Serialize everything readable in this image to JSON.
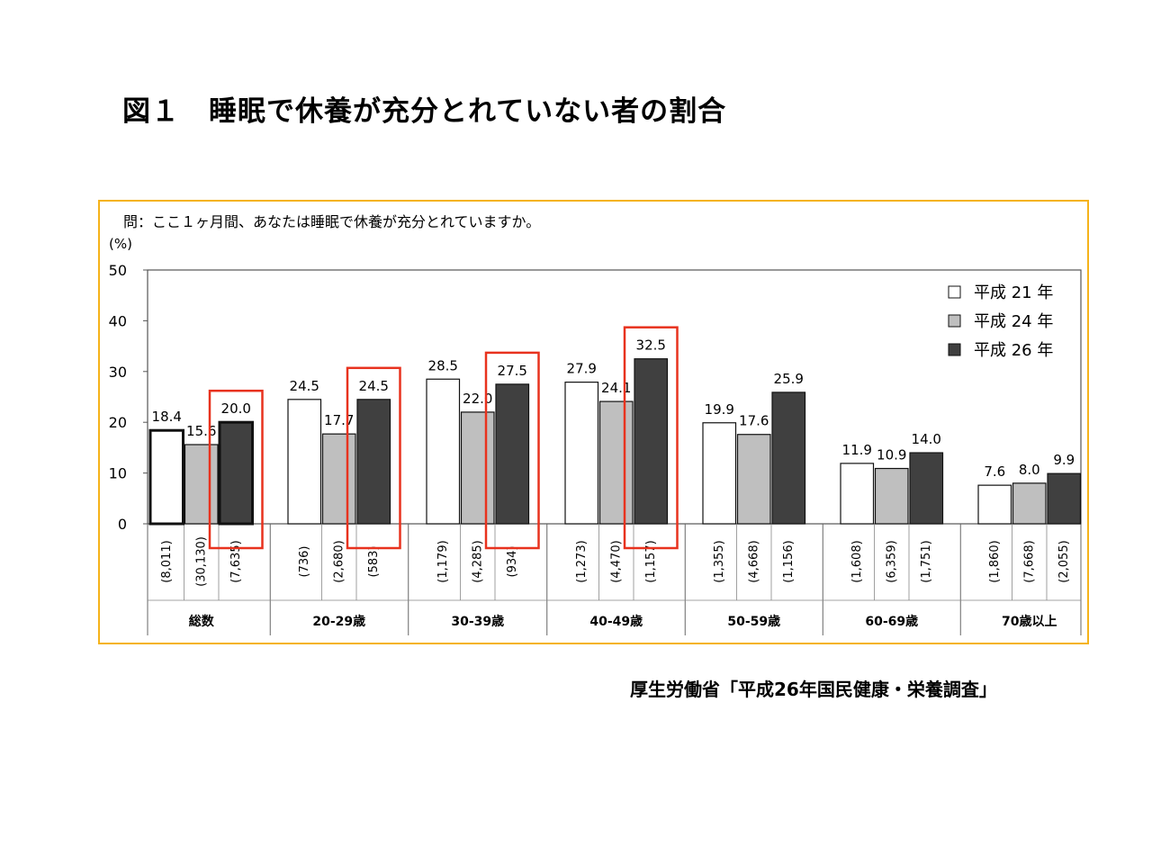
{
  "slide": {
    "title": "図１　睡眠で休養が充分とれていない者の割合",
    "source": "厚生労働省「平成26年国民健康・栄養調査」"
  },
  "colors": {
    "frame": "#f5b31a",
    "highlight": "#e8321e",
    "series": [
      "#ffffff",
      "#bfbfbf",
      "#404040"
    ]
  },
  "chart_data": {
    "type": "bar",
    "question": "問：ここ１ヶ月間、あなたは睡眠で休養が充分とれていますか。",
    "ylabel": "(%)",
    "ylim": [
      0,
      50
    ],
    "yticks": [
      0,
      10,
      20,
      30,
      40,
      50
    ],
    "legend_position": "top-right",
    "categories": [
      "総数",
      "20-29歳",
      "30-39歳",
      "40-49歳",
      "50-59歳",
      "60-69歳",
      "70歳以上"
    ],
    "series": [
      {
        "name": "平成 21 年",
        "values": [
          18.4,
          24.5,
          28.5,
          27.9,
          19.9,
          11.9,
          7.6
        ],
        "n": [
          "(8,011)",
          "(736)",
          "(1,179)",
          "(1,273)",
          "(1,355)",
          "(1,608)",
          "(1,860)"
        ]
      },
      {
        "name": "平成 24 年",
        "values": [
          15.6,
          17.7,
          22.0,
          24.1,
          17.6,
          10.9,
          8.0
        ],
        "n": [
          "(30,130)",
          "(2,680)",
          "(4,285)",
          "(4,470)",
          "(4,668)",
          "(6,359)",
          "(7,668)"
        ]
      },
      {
        "name": "平成 26 年",
        "values": [
          20.0,
          24.5,
          27.5,
          32.5,
          25.9,
          14.0,
          9.9
        ],
        "n": [
          "(7,635)",
          "(583)",
          "(934)",
          "(1,157)",
          "(1,156)",
          "(1,751)",
          "(2,055)"
        ]
      }
    ],
    "highlighted_categories": [
      0,
      1,
      2,
      3
    ]
  }
}
